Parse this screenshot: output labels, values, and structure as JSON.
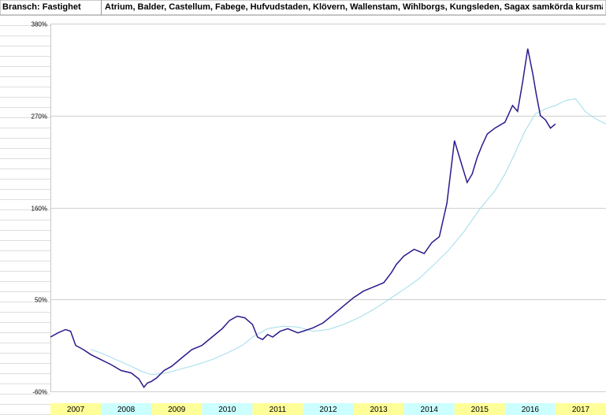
{
  "header": {
    "left": "Bransch: Fastighet",
    "right": "Atrium, Balder, Castellum, Fabege, Hufvudstaden, Klövern, Wallenstam, Wihlborgs, Kungsleden, Sagax samkörda kursmässigt"
  },
  "colors": {
    "main_line": "#2a1a8c",
    "average_line": "#9fdcec",
    "year_band_yellow": "#ffff99",
    "year_band_cyan": "#ccffff",
    "grid": "#d0d0d0"
  },
  "chart_data": {
    "type": "line",
    "title": "",
    "xlabel": "",
    "ylabel": "",
    "ylim": [
      -60,
      380
    ],
    "yticks": [
      -60,
      50,
      160,
      270,
      380
    ],
    "ytick_labels": [
      "-60%",
      "50%",
      "160%",
      "270%",
      "380%"
    ],
    "xlim": [
      2007.0,
      2018.0
    ],
    "years": [
      "2007",
      "2008",
      "2009",
      "2010",
      "2011",
      "2012",
      "2013",
      "2014",
      "2015",
      "2016",
      "2017"
    ],
    "grid": true,
    "series": [
      {
        "key": "main",
        "x": [
          2007.0,
          2007.15,
          2007.3,
          2007.4,
          2007.5,
          2007.65,
          2007.8,
          2008.0,
          2008.2,
          2008.4,
          2008.6,
          2008.75,
          2008.85,
          2008.92,
          2009.0,
          2009.1,
          2009.25,
          2009.4,
          2009.6,
          2009.8,
          2010.0,
          2010.2,
          2010.4,
          2010.55,
          2010.7,
          2010.85,
          2011.0,
          2011.1,
          2011.2,
          2011.3,
          2011.4,
          2011.55,
          2011.7,
          2011.9,
          2012.0,
          2012.2,
          2012.4,
          2012.6,
          2012.8,
          2013.0,
          2013.2,
          2013.4,
          2013.6,
          2013.75,
          2013.85,
          2014.0,
          2014.2,
          2014.4,
          2014.55,
          2014.7,
          2014.85,
          2015.0,
          2015.15,
          2015.25,
          2015.35,
          2015.45,
          2015.55,
          2015.65,
          2015.8,
          2016.0,
          2016.15,
          2016.25,
          2016.35,
          2016.45,
          2016.55,
          2016.62,
          2016.7,
          2016.8,
          2016.9,
          2017.0
        ],
        "values": [
          5,
          10,
          14,
          12,
          -5,
          -10,
          -16,
          -22,
          -28,
          -35,
          -38,
          -45,
          -55,
          -50,
          -48,
          -44,
          -35,
          -30,
          -20,
          -10,
          -5,
          5,
          15,
          25,
          30,
          28,
          20,
          5,
          2,
          8,
          5,
          12,
          15,
          10,
          12,
          16,
          22,
          32,
          42,
          52,
          60,
          65,
          70,
          82,
          92,
          102,
          110,
          105,
          118,
          125,
          165,
          240,
          210,
          190,
          200,
          220,
          235,
          248,
          255,
          262,
          282,
          275,
          310,
          350,
          320,
          295,
          270,
          265,
          255,
          260
        ]
      },
      {
        "key": "average",
        "x": [
          2007.8,
          2008.0,
          2008.3,
          2008.6,
          2008.8,
          2009.0,
          2009.3,
          2009.6,
          2009.9,
          2010.2,
          2010.5,
          2010.8,
          2011.0,
          2011.3,
          2011.6,
          2011.9,
          2012.2,
          2012.5,
          2012.8,
          2013.1,
          2013.4,
          2013.7,
          2014.0,
          2014.3,
          2014.6,
          2014.9,
          2015.2,
          2015.5,
          2015.8,
          2016.0,
          2016.2,
          2016.4,
          2016.6,
          2016.8,
          2017.0,
          2017.2,
          2017.4,
          2017.6,
          2017.8,
          2018.0
        ],
        "values": [
          -10,
          -14,
          -22,
          -30,
          -36,
          -40,
          -38,
          -33,
          -28,
          -22,
          -14,
          -5,
          5,
          15,
          18,
          17,
          12,
          14,
          20,
          28,
          38,
          50,
          62,
          75,
          92,
          110,
          132,
          158,
          180,
          200,
          225,
          252,
          272,
          278,
          282,
          288,
          290,
          274,
          266,
          260
        ]
      }
    ]
  }
}
